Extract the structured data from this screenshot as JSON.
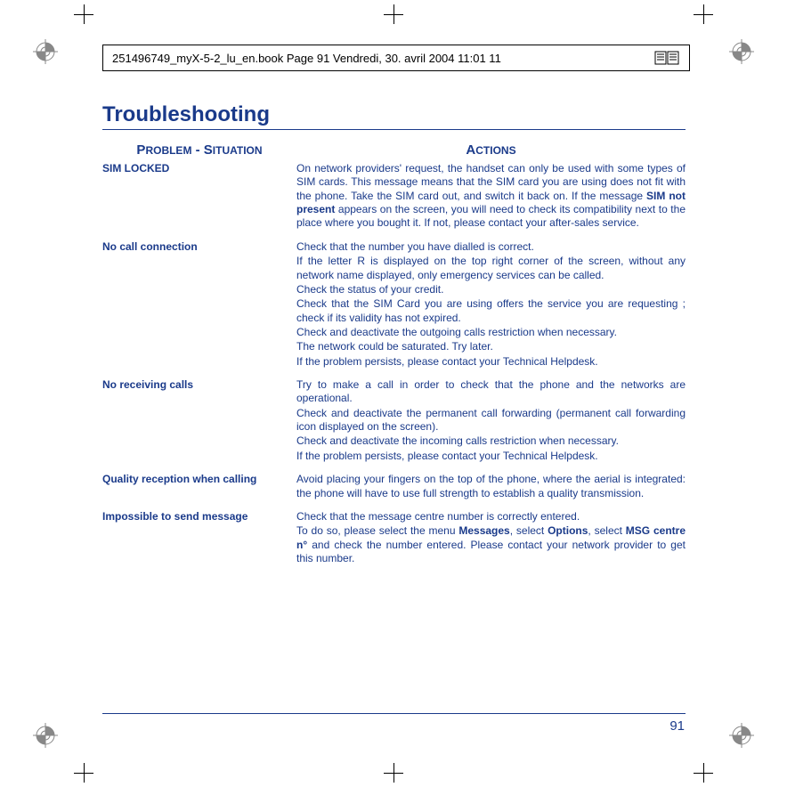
{
  "header": {
    "text": "251496749_myX-5-2_lu_en.book  Page 91  Vendredi, 30. avril 2004  11:01 11"
  },
  "title": "Troubleshooting",
  "columns": {
    "problem": "PROBLEM - SITUATION",
    "actions": "ACTIONS"
  },
  "rows": [
    {
      "problem": "SIM LOCKED",
      "actions": "On network providers' request, the handset can only be used with some types of SIM cards. This message means that the SIM card you are using does not fit with the phone. Take the SIM card out, and switch it back on. If the message <b>SIM not present</b> appears on the screen, you will need to check its compatibility next to the place where you bought it. If not, please contact your after-sales service."
    },
    {
      "problem": "No call connection",
      "actions": "Check that the number you have dialled is correct.<br>If the letter R is displayed on the top right corner of the screen, without any network name displayed, only emergency services can be called.<br>Check the status of your credit.<br>Check that the SIM Card you are using offers the service you are requesting ; check if its validity has not expired.<br>Check and deactivate the outgoing calls restriction when necessary.<br>The network could be saturated. Try later.<br>If the problem persists, please contact your Technical Helpdesk."
    },
    {
      "problem": "No receiving calls",
      "actions": "Try to make a call in order to check that the phone and the networks are operational.<br>Check and deactivate the permanent call forwarding (permanent call forwarding icon displayed on the screen).<br>Check and deactivate the incoming calls restriction when necessary.<br>If the problem persists, please contact your Technical Helpdesk."
    },
    {
      "problem": "Quality reception when calling",
      "actions": "Avoid placing your fingers on the top of the phone, where the aerial is integrated: the phone will have to use full strength to establish a quality transmission."
    },
    {
      "problem": "Impossible to send message",
      "actions": "Check that the message centre number is correctly entered.<br>To do so, please select the menu <b>Messages</b>, select <b>Options</b>, select <b>MSG centre n°</b> and check the number entered. Please contact your network provider to get this number."
    }
  ],
  "pageNumber": "91",
  "colors": {
    "text": "#1a3a8a",
    "background": "#ffffff"
  }
}
